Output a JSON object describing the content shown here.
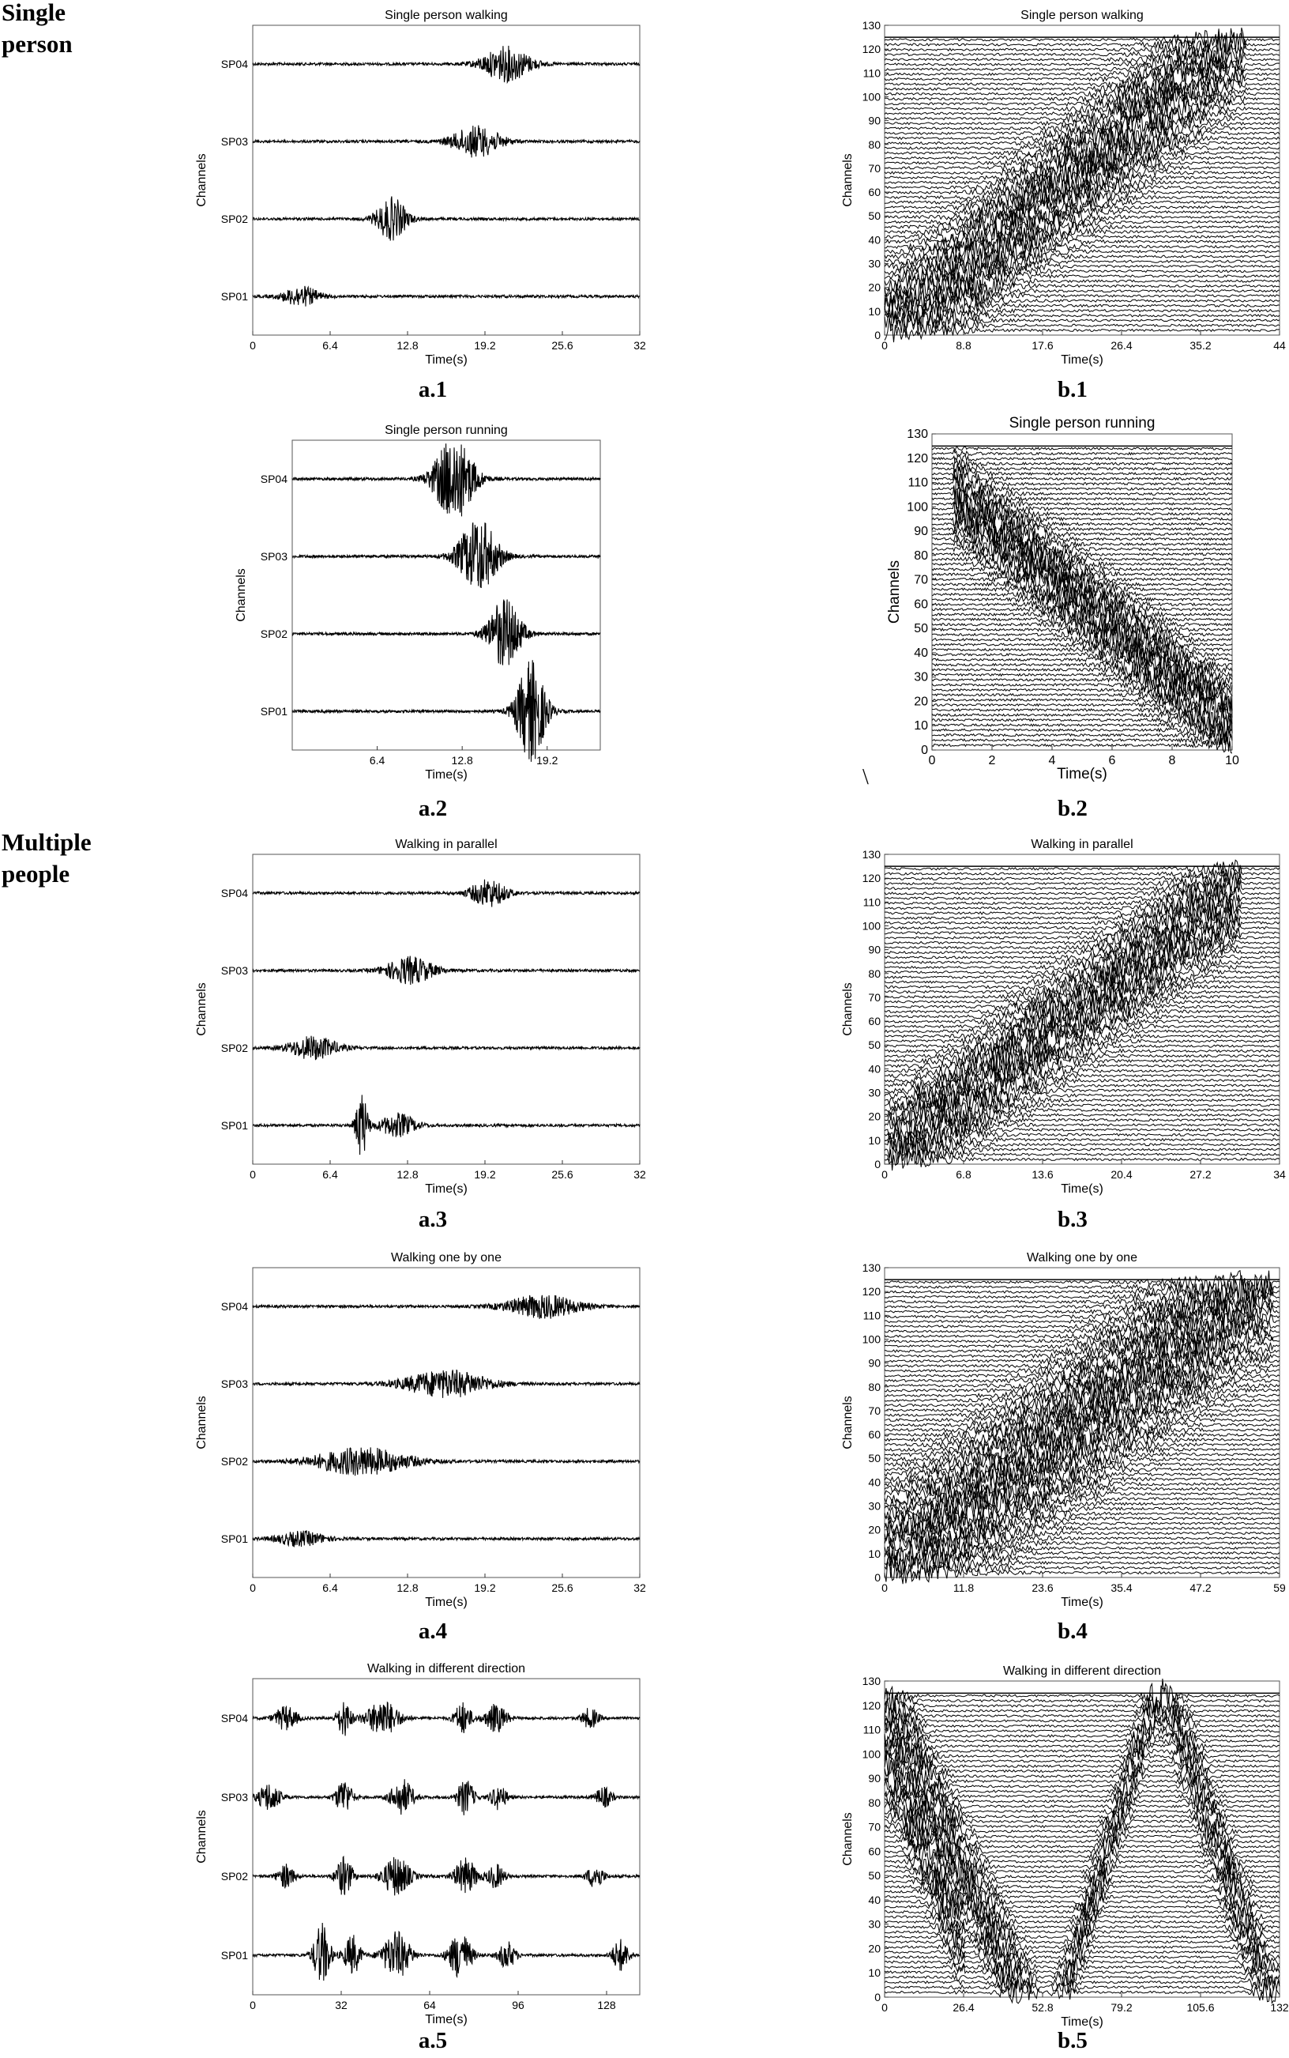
{
  "row_labels": {
    "single": "Single\nperson",
    "multiple": "Multiple\npeople"
  },
  "stray_mark": "\\",
  "colors": {
    "trace": "#000000",
    "grey_trace": "#8a8a8a",
    "frame": "#555555"
  },
  "chart_data": [
    {
      "id": "a1",
      "caption": "a.1",
      "type": "line",
      "kind": "trace",
      "title": "Single person walking",
      "xlabel": "Time(s)",
      "ylabel": "Channels",
      "xlim": [
        0,
        32
      ],
      "xticks": [
        "0",
        "6.4",
        "12.8",
        "19.2",
        "25.6",
        "32"
      ],
      "series": [
        {
          "name": "SP04",
          "bursts": [
            {
              "t": 21,
              "w": 4,
              "a": 0.45
            }
          ]
        },
        {
          "name": "SP03",
          "bursts": [
            {
              "t": 18.5,
              "w": 4,
              "a": 0.4
            }
          ]
        },
        {
          "name": "SP02",
          "bursts": [
            {
              "t": 11.5,
              "w": 2.5,
              "a": 0.55
            }
          ]
        },
        {
          "name": "SP01",
          "bursts": [
            {
              "t": 4,
              "w": 3,
              "a": 0.25
            }
          ]
        }
      ]
    },
    {
      "id": "b1",
      "caption": "b.1",
      "type": "heatmap",
      "kind": "waterfall",
      "title": "Single person walking",
      "xlabel": "Time(s)",
      "ylabel": "Channels",
      "xlim": [
        0,
        44
      ],
      "ylim": [
        0,
        130
      ],
      "xticks": [
        "0",
        "8.8",
        "17.6",
        "26.4",
        "35.2",
        "44"
      ],
      "yticks": [
        "0",
        "10",
        "20",
        "30",
        "40",
        "50",
        "60",
        "70",
        "80",
        "90",
        "100",
        "110",
        "120",
        "130"
      ],
      "bands": [
        {
          "x0": 2,
          "y0": 5,
          "x1": 38,
          "y1": 120,
          "w": 0.16
        }
      ]
    },
    {
      "id": "a2",
      "caption": "a.2",
      "type": "line",
      "kind": "trace",
      "title": "Single person running",
      "xlabel": "Time(s)",
      "ylabel": "Channels",
      "xlim": [
        0,
        23.2
      ],
      "xticks": [
        "6.4",
        "12.8",
        "19.2"
      ],
      "series": [
        {
          "name": "SP04",
          "bursts": [
            {
              "t": 12.2,
              "w": 3,
              "a": 1.1
            }
          ]
        },
        {
          "name": "SP03",
          "bursts": [
            {
              "t": 14,
              "w": 3,
              "a": 0.95
            }
          ]
        },
        {
          "name": "SP02",
          "bursts": [
            {
              "t": 16,
              "w": 2.5,
              "a": 0.9
            }
          ]
        },
        {
          "name": "SP01",
          "bursts": [
            {
              "t": 18,
              "w": 2.2,
              "a": 1.3
            }
          ]
        }
      ]
    },
    {
      "id": "b2",
      "caption": "b.2",
      "type": "heatmap",
      "kind": "waterfall",
      "title": "Single person running",
      "xlabel": "Time(s)",
      "ylabel": "Channels",
      "xlim": [
        0,
        10
      ],
      "ylim": [
        0,
        130
      ],
      "xticks": [
        "0",
        "2",
        "4",
        "6",
        "8",
        "10"
      ],
      "yticks": [
        "0",
        "10",
        "20",
        "30",
        "40",
        "50",
        "60",
        "70",
        "80",
        "90",
        "100",
        "110",
        "120",
        "130"
      ],
      "bands": [
        {
          "x0": 1.2,
          "y0": 100,
          "x1": 9.8,
          "y1": 12,
          "w": 0.11
        }
      ]
    },
    {
      "id": "a3",
      "caption": "a.3",
      "type": "line",
      "kind": "trace",
      "title": "Walking in parallel",
      "xlabel": "Time(s)",
      "ylabel": "Channels",
      "xlim": [
        0,
        32
      ],
      "xticks": [
        "0",
        "6.4",
        "12.8",
        "19.2",
        "25.6",
        "32"
      ],
      "series": [
        {
          "name": "SP04",
          "bursts": [
            {
              "t": 19.5,
              "w": 3,
              "a": 0.35
            }
          ]
        },
        {
          "name": "SP03",
          "bursts": [
            {
              "t": 13,
              "w": 4,
              "a": 0.35
            }
          ]
        },
        {
          "name": "SP02",
          "bursts": [
            {
              "t": 5,
              "w": 4,
              "a": 0.3
            }
          ]
        },
        {
          "name": "SP01",
          "bursts": [
            {
              "t": 9,
              "w": 1,
              "a": 0.85
            },
            {
              "t": 12,
              "w": 3,
              "a": 0.3
            }
          ]
        }
      ]
    },
    {
      "id": "b3",
      "caption": "b.3",
      "type": "heatmap",
      "kind": "waterfall",
      "title": "Walking in parallel",
      "xlabel": "Time(s)",
      "ylabel": "Channels",
      "xlim": [
        0,
        34
      ],
      "ylim": [
        0,
        130
      ],
      "xticks": [
        "0",
        "6.8",
        "13.6",
        "20.4",
        "27.2",
        "34"
      ],
      "yticks": [
        "0",
        "10",
        "20",
        "30",
        "40",
        "50",
        "60",
        "70",
        "80",
        "90",
        "100",
        "110",
        "120",
        "130"
      ],
      "bands": [
        {
          "x0": 2,
          "y0": 10,
          "x1": 29,
          "y1": 110,
          "w": 0.14
        }
      ]
    },
    {
      "id": "a4",
      "caption": "a.4",
      "type": "line",
      "kind": "trace",
      "title": "Walking one by one",
      "xlabel": "Time(s)",
      "ylabel": "Channels",
      "xlim": [
        0,
        32
      ],
      "xticks": [
        "0",
        "6.4",
        "12.8",
        "19.2",
        "25.6",
        "32"
      ],
      "series": [
        {
          "name": "SP04",
          "bursts": [
            {
              "t": 24,
              "w": 6,
              "a": 0.3
            }
          ]
        },
        {
          "name": "SP03",
          "bursts": [
            {
              "t": 16,
              "w": 7,
              "a": 0.35
            }
          ]
        },
        {
          "name": "SP02",
          "bursts": [
            {
              "t": 9,
              "w": 8,
              "a": 0.35
            }
          ]
        },
        {
          "name": "SP01",
          "bursts": [
            {
              "t": 4,
              "w": 4,
              "a": 0.18
            }
          ]
        }
      ]
    },
    {
      "id": "b4",
      "caption": "b.4",
      "type": "heatmap",
      "kind": "waterfall",
      "title": "Walking one by one",
      "xlabel": "Time(s)",
      "ylabel": "Channels",
      "xlim": [
        0,
        59
      ],
      "ylim": [
        0,
        130
      ],
      "xticks": [
        "0",
        "11.8",
        "23.6",
        "35.4",
        "47.2",
        "59"
      ],
      "yticks": [
        "0",
        "10",
        "20",
        "30",
        "40",
        "50",
        "60",
        "70",
        "80",
        "90",
        "100",
        "110",
        "120",
        "130"
      ],
      "bands": [
        {
          "x0": 3,
          "y0": 8,
          "x1": 55,
          "y1": 122,
          "w": 0.2
        }
      ]
    },
    {
      "id": "a5",
      "caption": "a.5",
      "type": "line",
      "kind": "trace",
      "title": "Walking in different direction",
      "xlabel": "Time(s)",
      "ylabel": "Channels",
      "xlim": [
        0,
        140
      ],
      "xticks": [
        "0",
        "32",
        "64",
        "96",
        "128"
      ],
      "series": [
        {
          "name": "SP04",
          "bursts": [
            {
              "t": 12,
              "w": 8,
              "a": 0.3
            },
            {
              "t": 33,
              "w": 5,
              "a": 0.45
            },
            {
              "t": 47,
              "w": 12,
              "a": 0.45
            },
            {
              "t": 76,
              "w": 6,
              "a": 0.4
            },
            {
              "t": 88,
              "w": 8,
              "a": 0.35
            },
            {
              "t": 122,
              "w": 6,
              "a": 0.25
            }
          ]
        },
        {
          "name": "SP03",
          "bursts": [
            {
              "t": 6,
              "w": 8,
              "a": 0.35
            },
            {
              "t": 33,
              "w": 6,
              "a": 0.45
            },
            {
              "t": 54,
              "w": 8,
              "a": 0.45
            },
            {
              "t": 77,
              "w": 6,
              "a": 0.45
            },
            {
              "t": 89,
              "w": 6,
              "a": 0.3
            },
            {
              "t": 127,
              "w": 6,
              "a": 0.25
            }
          ]
        },
        {
          "name": "SP02",
          "bursts": [
            {
              "t": 12,
              "w": 6,
              "a": 0.3
            },
            {
              "t": 33,
              "w": 6,
              "a": 0.5
            },
            {
              "t": 52,
              "w": 10,
              "a": 0.5
            },
            {
              "t": 77,
              "w": 8,
              "a": 0.45
            },
            {
              "t": 88,
              "w": 6,
              "a": 0.3
            },
            {
              "t": 124,
              "w": 6,
              "a": 0.3
            }
          ]
        },
        {
          "name": "SP01",
          "bursts": [
            {
              "t": 25,
              "w": 6,
              "a": 0.8
            },
            {
              "t": 36,
              "w": 6,
              "a": 0.5
            },
            {
              "t": 52,
              "w": 10,
              "a": 0.6
            },
            {
              "t": 75,
              "w": 8,
              "a": 0.6
            },
            {
              "t": 92,
              "w": 6,
              "a": 0.35
            },
            {
              "t": 133,
              "w": 6,
              "a": 0.4
            }
          ]
        }
      ]
    },
    {
      "id": "b5",
      "caption": "b.5",
      "type": "heatmap",
      "kind": "waterfall",
      "title": "Walking in different direction",
      "xlabel": "Time(s)",
      "ylabel": "Channels",
      "xlim": [
        0,
        132
      ],
      "ylim": [
        0,
        130
      ],
      "xticks": [
        "0",
        "26.4",
        "52.8",
        "79.2",
        "105.6",
        "132"
      ],
      "yticks": [
        "0",
        "10",
        "20",
        "30",
        "40",
        "50",
        "60",
        "70",
        "80",
        "90",
        "100",
        "110",
        "120",
        "130"
      ],
      "bands": [
        {
          "x0": 2,
          "y0": 120,
          "x1": 45,
          "y1": 3,
          "w": 0.13
        },
        {
          "x0": 60,
          "y0": 3,
          "x1": 90,
          "y1": 122,
          "w": 0.1
        },
        {
          "x0": 95,
          "y0": 122,
          "x1": 128,
          "y1": 3,
          "w": 0.12
        },
        {
          "x0": 0,
          "y0": 100,
          "x1": 20,
          "y1": 40,
          "w": 0.12
        }
      ]
    }
  ]
}
